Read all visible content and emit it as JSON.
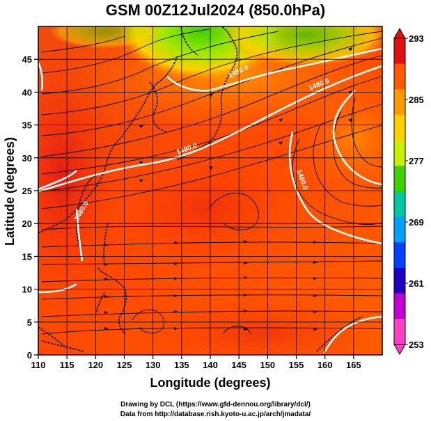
{
  "title": "GSM 00Z12Jul2024 (850.0hPa)",
  "xlabel": "Longitude (degrees)",
  "ylabel": "Latitude (degrees)",
  "credits": {
    "line1": "Drawing by DCL (https://www.gfd-dennou.org/library/dcl/)",
    "line2": "Data from http://database.rish.kyoto-u.ac.jp/arch/jmadata/"
  },
  "map": {
    "lon_range": [
      110,
      170
    ],
    "lat_range": [
      0,
      50
    ],
    "lon_ticks": [
      "110",
      "115",
      "120",
      "125",
      "130",
      "135",
      "140",
      "145",
      "150",
      "155",
      "160",
      "165"
    ],
    "lat_ticks": [
      "0",
      "5",
      "10",
      "15",
      "20",
      "25",
      "30",
      "35",
      "40",
      "45"
    ],
    "contour_labels": [
      "1480.0",
      "1480.0",
      "1480.0",
      "1480.0",
      "1480.0"
    ]
  },
  "colorbar": {
    "ticks": [
      "293",
      "285",
      "277",
      "269",
      "261",
      "253"
    ],
    "colors": [
      "#e01010",
      "#ff5a00",
      "#ff9a00",
      "#ffd000",
      "#c8f000",
      "#40d000",
      "#00c8a0",
      "#00a0ff",
      "#0040ff",
      "#2000c0",
      "#c000d0",
      "#ff40c0"
    ]
  }
}
